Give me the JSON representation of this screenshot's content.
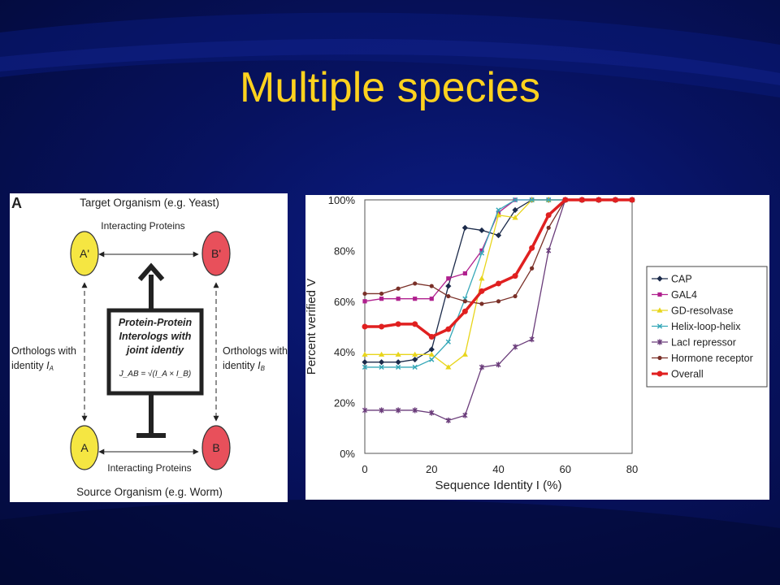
{
  "slide": {
    "title": "Multiple species"
  },
  "diagram": {
    "panel_label": "A",
    "target_organism": "Target Organism (e.g. Yeast)",
    "source_organism": "Source Organism (e.g. Worm)",
    "interacting_top": "Interacting Proteins",
    "interacting_bottom": "Interacting Proteins",
    "node_a_prime": "A'",
    "node_b_prime": "B'",
    "node_a": "A",
    "node_b": "B",
    "orthologs_left_1": "Orthologs with",
    "orthologs_left_2": "identity ",
    "orthologs_left_var": "I",
    "orthologs_left_sub": "A",
    "orthologs_right_1": "Orthologs with",
    "orthologs_right_2": "identity ",
    "orthologs_right_var": "I",
    "orthologs_right_sub": "B",
    "box_line1": "Protein-Protein",
    "box_line2": "Interologs with",
    "box_line3": "joint identiy",
    "formula": "J_AB = √(I_A × I_B)",
    "colors": {
      "yellow_node": "#f5e642",
      "red_node": "#e8505b"
    }
  },
  "chart_data": {
    "type": "line",
    "xlabel": "Sequence Identity I (%)",
    "ylabel": "Percent verified V",
    "xlim": [
      0,
      80
    ],
    "ylim": [
      0,
      100
    ],
    "xticks": [
      "0",
      "20",
      "40",
      "60",
      "80"
    ],
    "yticks": [
      "0%",
      "20%",
      "40%",
      "60%",
      "80%",
      "100%"
    ],
    "legend_position": "right",
    "grid": false,
    "series": [
      {
        "name": "CAP",
        "color": "#1b2a4a",
        "marker": "diamond",
        "x": [
          0,
          5,
          10,
          15,
          20,
          25,
          30,
          35,
          40,
          45,
          50,
          55,
          60,
          65,
          70,
          75,
          80
        ],
        "y": [
          36,
          36,
          36,
          37,
          41,
          66,
          89,
          88,
          86,
          96,
          100,
          100,
          100,
          100,
          100,
          100,
          100
        ]
      },
      {
        "name": "GAL4",
        "color": "#b0208e",
        "marker": "square",
        "x": [
          0,
          5,
          10,
          15,
          20,
          25,
          30,
          35,
          40,
          45,
          50,
          55,
          60,
          65,
          70,
          75,
          80
        ],
        "y": [
          60,
          61,
          61,
          61,
          61,
          69,
          71,
          80,
          95,
          100,
          100,
          100,
          100,
          100,
          100,
          100,
          100
        ]
      },
      {
        "name": "GD-resolvase",
        "color": "#e8d51b",
        "marker": "triangle",
        "x": [
          0,
          5,
          10,
          15,
          20,
          25,
          30,
          35,
          40,
          45,
          50,
          55,
          60,
          65,
          70,
          75,
          80
        ],
        "y": [
          39,
          39,
          39,
          39,
          39,
          34,
          39,
          69,
          94,
          93,
          100,
          100,
          100,
          100,
          100,
          100,
          100
        ]
      },
      {
        "name": "Helix-loop-helix",
        "color": "#36a8b8",
        "marker": "x",
        "x": [
          0,
          5,
          10,
          15,
          20,
          25,
          30,
          35,
          40,
          45,
          50,
          55,
          60,
          65,
          70,
          75,
          80
        ],
        "y": [
          34,
          34,
          34,
          34,
          37,
          44,
          61,
          79,
          96,
          100,
          100,
          100,
          100,
          100,
          100,
          100,
          100
        ]
      },
      {
        "name": "LacI repressor",
        "color": "#6a3c7a",
        "marker": "star",
        "x": [
          0,
          5,
          10,
          15,
          20,
          25,
          30,
          35,
          40,
          45,
          50,
          55,
          60,
          65,
          70,
          75,
          80
        ],
        "y": [
          17,
          17,
          17,
          17,
          16,
          13,
          15,
          34,
          35,
          42,
          45,
          80,
          100,
          100,
          100,
          100,
          100
        ]
      },
      {
        "name": "Hormone receptor",
        "color": "#7a3028",
        "marker": "circle",
        "x": [
          0,
          5,
          10,
          15,
          20,
          25,
          30,
          35,
          40,
          45,
          50,
          55,
          60,
          65,
          70,
          75,
          80
        ],
        "y": [
          63,
          63,
          65,
          67,
          66,
          62,
          60,
          59,
          60,
          62,
          73,
          89,
          100,
          100,
          100,
          100,
          100
        ]
      },
      {
        "name": "Overall",
        "color": "#e02020",
        "marker": "circle",
        "x": [
          0,
          5,
          10,
          15,
          20,
          25,
          30,
          35,
          40,
          45,
          50,
          55,
          60,
          65,
          70,
          75,
          80
        ],
        "y": [
          50,
          50,
          51,
          51,
          46,
          49,
          56,
          64,
          67,
          70,
          81,
          94,
          100,
          100,
          100,
          100,
          100
        ]
      }
    ]
  }
}
